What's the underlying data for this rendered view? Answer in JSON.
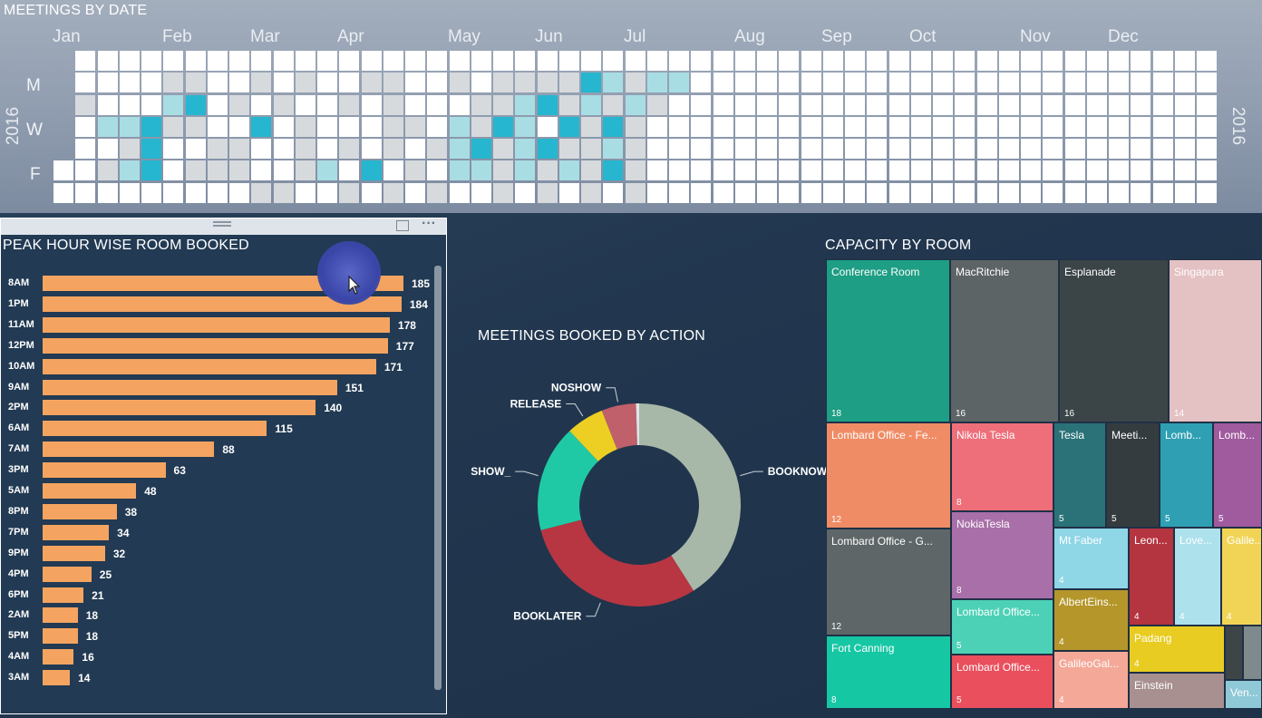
{
  "calendar": {
    "title": "MEETINGS BY DATE",
    "year": "2016",
    "months": [
      "Jan",
      "Feb",
      "Mar",
      "Apr",
      "May",
      "Jun",
      "Jul",
      "Aug",
      "Sep",
      "Oct",
      "Nov",
      "Dec"
    ],
    "day_labels": [
      "M",
      "W",
      "F"
    ]
  },
  "bar_chart_title": "PEAK HOUR WISE ROOM BOOKED",
  "donut_title": "MEETINGS BOOKED BY ACTION",
  "treemap_title": "CAPACITY BY ROOM",
  "chart_data": [
    {
      "type": "bar",
      "title": "PEAK HOUR WISE ROOM BOOKED",
      "orientation": "horizontal",
      "categories": [
        "8AM",
        "1PM",
        "11AM",
        "12PM",
        "10AM",
        "9AM",
        "2PM",
        "6AM",
        "7AM",
        "3PM",
        "5AM",
        "8PM",
        "7PM",
        "9PM",
        "4PM",
        "6PM",
        "2AM",
        "5PM",
        "4AM",
        "3AM"
      ],
      "values": [
        185,
        184,
        178,
        177,
        171,
        151,
        140,
        115,
        88,
        63,
        48,
        38,
        34,
        32,
        25,
        21,
        18,
        18,
        16,
        14
      ],
      "color": "#f4a460",
      "xlim": [
        0,
        185
      ]
    },
    {
      "type": "pie",
      "title": "MEETINGS BOOKED BY ACTION",
      "donut": true,
      "slices": [
        {
          "label": "BOOKNOW",
          "value": 41,
          "color": "#a8b8a8"
        },
        {
          "label": "BOOKLATER",
          "value": 30,
          "color": "#b73642"
        },
        {
          "label": "SHOW_",
          "value": 17,
          "color": "#20c9a5"
        },
        {
          "label": "RELEASE",
          "value": 6,
          "color": "#eccf22"
        },
        {
          "label": "NOSHOW",
          "value": 5.5,
          "color": "#c0606a"
        },
        {
          "label": "",
          "value": 0.5,
          "color": "#dfe5ea"
        }
      ]
    },
    {
      "type": "treemap",
      "title": "CAPACITY BY ROOM",
      "items": [
        {
          "name": "Conference Room",
          "value": "18",
          "color": "#1e9e84"
        },
        {
          "name": "MacRitchie",
          "value": "16",
          "color": "#5d6465"
        },
        {
          "name": "Esplanade",
          "value": "16",
          "color": "#3b4447"
        },
        {
          "name": "Singapura",
          "value": "14",
          "color": "#e4c1c3"
        },
        {
          "name": "Lombard Office - Fe...",
          "value": "12",
          "color": "#f08c65"
        },
        {
          "name": "Lombard Office - G...",
          "value": "12",
          "color": "#5e6667"
        },
        {
          "name": "Nikola Tesla",
          "value": "8",
          "color": "#ee6f7a"
        },
        {
          "name": "NokiaTesla",
          "value": "8",
          "color": "#a86fa8"
        },
        {
          "name": "Fort Canning",
          "value": "8",
          "color": "#16c7a4"
        },
        {
          "name": "Tesla",
          "value": "5",
          "color": "#2a7278"
        },
        {
          "name": "Meeti...",
          "value": "5",
          "color": "#343c40"
        },
        {
          "name": "Lomb...",
          "value": "5",
          "color": "#2fa0b3"
        },
        {
          "name": "Lomb...",
          "value": "5",
          "color": "#a05a9e"
        },
        {
          "name": "Lombard Office...",
          "value": "5",
          "color": "#4cd1b7"
        },
        {
          "name": "Lombard Office...",
          "value": "5",
          "color": "#e94f5c"
        },
        {
          "name": "Mt Faber",
          "value": "4",
          "color": "#8fd6e6"
        },
        {
          "name": "Leon...",
          "value": "4",
          "color": "#b4343f"
        },
        {
          "name": "Love...",
          "value": "4",
          "color": "#ade1ec"
        },
        {
          "name": "Galile...",
          "value": "4",
          "color": "#f1d456"
        },
        {
          "name": "AlbertEins...",
          "value": "4",
          "color": "#b5962a"
        },
        {
          "name": "Padang",
          "value": "4",
          "color": "#e9cc22"
        },
        {
          "name": "GalileoGal...",
          "value": "4",
          "color": "#f4a898"
        },
        {
          "name": "Einstein",
          "value": "",
          "color": "#a89090"
        },
        {
          "name": "",
          "value": "",
          "color": "#3d4548"
        },
        {
          "name": "",
          "value": "",
          "color": "#7f8a8c"
        },
        {
          "name": "Ven...",
          "value": "",
          "color": "#8fc8d6"
        }
      ]
    }
  ]
}
